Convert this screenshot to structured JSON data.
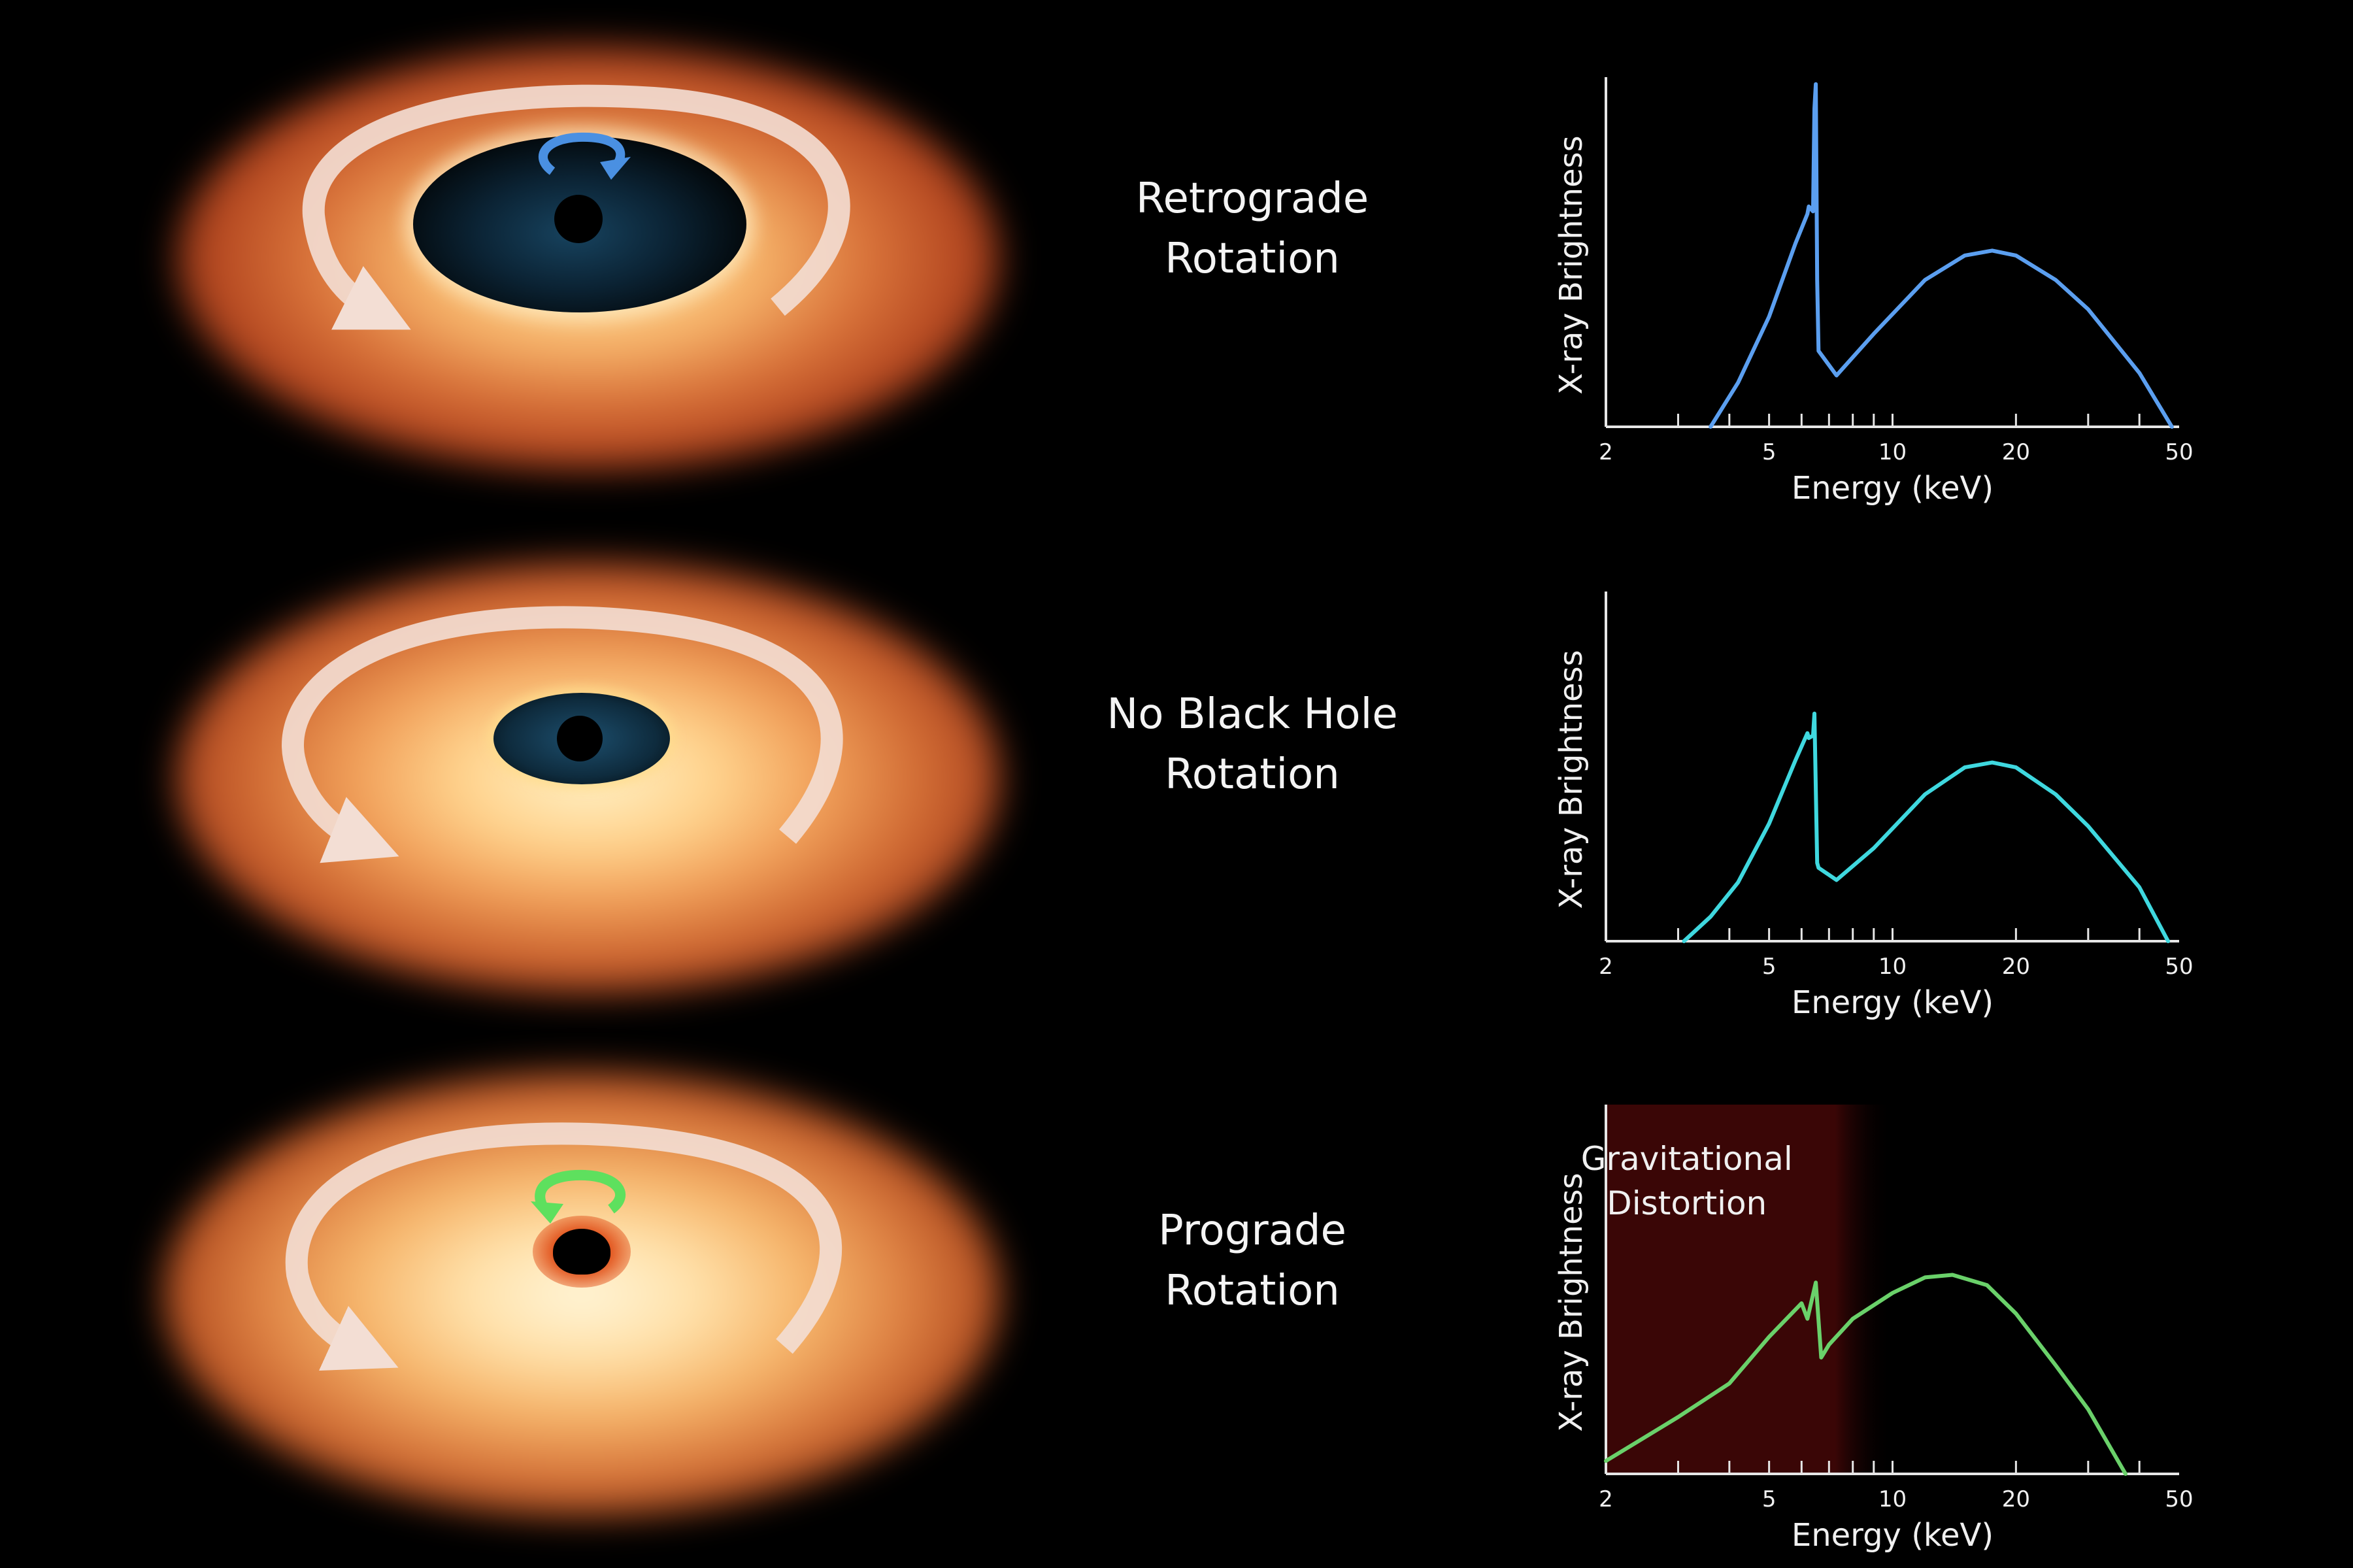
{
  "panels": [
    {
      "title_line1": "Retrograde",
      "title_line2": "Rotation",
      "spin_icon": "counter-rotation-arrow",
      "spin_color": "#4a90e2"
    },
    {
      "title_line1": "No Black Hole",
      "title_line2": "Rotation",
      "spin_icon": "none",
      "spin_color": ""
    },
    {
      "title_line1": "Prograde",
      "title_line2": "Rotation",
      "spin_icon": "co-rotation-arrow",
      "spin_color": "#5ee05e"
    }
  ],
  "chart_data": [
    {
      "type": "line",
      "title": "Retrograde Rotation",
      "xlabel": "Energy (keV)",
      "ylabel": "X-ray Brightness",
      "xscale": "log",
      "xlim": [
        2,
        50
      ],
      "x_ticks": [
        2,
        5,
        10,
        20,
        50
      ],
      "color": "#5b9ff0",
      "series": [
        {
          "name": "spectrum",
          "x": [
            3.6,
            4.2,
            5.0,
            5.8,
            6.2,
            6.25,
            6.4,
            6.45,
            6.5,
            6.55,
            6.6,
            7.3,
            9.0,
            12.0,
            15.0,
            17.5,
            20.0,
            25.0,
            30.0,
            40.0,
            48.0
          ],
          "y": [
            0,
            18,
            45,
            75,
            87,
            90,
            88,
            130,
            140,
            60,
            31,
            21,
            38,
            60,
            70,
            72,
            70,
            60,
            48,
            22,
            0
          ]
        }
      ],
      "annotations": []
    },
    {
      "type": "line",
      "title": "No Black Hole Rotation",
      "xlabel": "Energy (keV)",
      "ylabel": "X-ray Brightness",
      "xscale": "log",
      "xlim": [
        2,
        50
      ],
      "x_ticks": [
        2,
        5,
        10,
        20,
        50
      ],
      "color": "#3fd8df",
      "series": [
        {
          "name": "spectrum",
          "x": [
            3.1,
            3.6,
            4.2,
            5.0,
            5.8,
            6.2,
            6.25,
            6.4,
            6.45,
            6.55,
            6.6,
            7.3,
            9.0,
            12.0,
            15.0,
            17.5,
            20.0,
            25.0,
            30.0,
            40.0,
            47.0
          ],
          "y": [
            0,
            10,
            24,
            48,
            74,
            85,
            83,
            84,
            93,
            32,
            30,
            25,
            38,
            60,
            71,
            73,
            71,
            60,
            47,
            22,
            0
          ]
        }
      ],
      "annotations": []
    },
    {
      "type": "line",
      "title": "Prograde Rotation",
      "xlabel": "Energy (keV)",
      "ylabel": "X-ray Brightness",
      "xscale": "log",
      "xlim": [
        2,
        50
      ],
      "x_ticks": [
        2,
        5,
        10,
        20,
        50
      ],
      "color": "#6ad16a",
      "series": [
        {
          "name": "spectrum",
          "x": [
            2.0,
            3.0,
            4.0,
            5.0,
            6.0,
            6.2,
            6.5,
            6.7,
            7.0,
            8.0,
            10.0,
            12.0,
            14.0,
            17.0,
            20.0,
            25.0,
            30.0,
            37.0
          ],
          "y": [
            5,
            22,
            35,
            53,
            66,
            60,
            74,
            45,
            50,
            60,
            70,
            76,
            77,
            73,
            62,
            42,
            25,
            0
          ]
        }
      ],
      "annotations": [
        {
          "text_line1": "Gravitational",
          "text_line2": "Distortion",
          "shaded_xrange": [
            2,
            8
          ],
          "shade_color": "#3a0606"
        }
      ]
    }
  ]
}
